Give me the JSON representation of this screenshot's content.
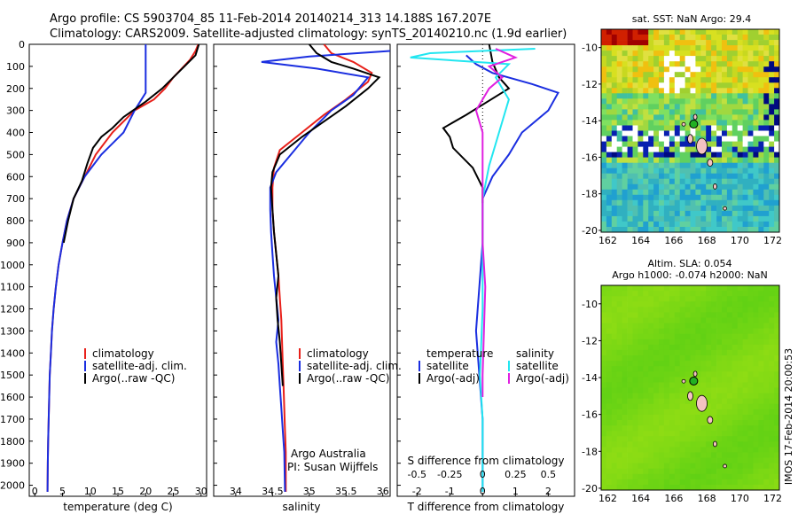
{
  "header": {
    "line1": "Argo profile: CS 5903704_85 11-Feb-2014 20140214_313 14.188S 167.207E",
    "line2": "Climatology: CARS2009. Satellite-adjusted climatology: synTS_20140210.nc (1.9d earlier)"
  },
  "credit": {
    "org": "Argo Australia",
    "pi": "PI: Susan Wijffels"
  },
  "side_stamp": "IMOS 17-Feb-2014 20:00:53",
  "colors": {
    "climatology": "#e8201a",
    "satellite": "#1a2ee0",
    "argo": "#000000",
    "cyan": "#22e6f0",
    "magenta": "#e020e0"
  },
  "chart_data": [
    {
      "type": "line",
      "name": "temperature-profile",
      "xlabel": "temperature (deg C)",
      "xlim": [
        -1,
        31
      ],
      "ylim": [
        0,
        2050
      ],
      "xticks": [
        0,
        5,
        10,
        15,
        20,
        25,
        30
      ],
      "yticks": [
        0,
        100,
        200,
        300,
        400,
        500,
        600,
        700,
        800,
        900,
        1000,
        1100,
        1200,
        1300,
        1400,
        1500,
        1600,
        1700,
        1800,
        1900,
        2000
      ],
      "legend": [
        "climatology",
        "satellite-adj. clim.",
        "Argo(..raw -QC)"
      ],
      "series": [
        {
          "name": "climatology",
          "color": "#e8201a",
          "points": [
            [
              29.5,
              0
            ],
            [
              29,
              30
            ],
            [
              28,
              70
            ],
            [
              26.5,
              110
            ],
            [
              25,
              150
            ],
            [
              23.5,
              200
            ],
            [
              21.5,
              250
            ],
            [
              18,
              300
            ],
            [
              14,
              400
            ],
            [
              11,
              500
            ],
            [
              9,
              600
            ],
            [
              7,
              700
            ],
            [
              5.8,
              800
            ],
            [
              5,
              900
            ],
            [
              4.3,
              1000
            ],
            [
              3.8,
              1100
            ],
            [
              3.4,
              1200
            ],
            [
              3.1,
              1300
            ],
            [
              2.9,
              1400
            ],
            [
              2.7,
              1500
            ],
            [
              2.6,
              1600
            ],
            [
              2.5,
              1700
            ],
            [
              2.4,
              1800
            ],
            [
              2.35,
              1900
            ],
            [
              2.3,
              2030
            ]
          ]
        },
        {
          "name": "satellite-adj. clim.",
          "color": "#1a2ee0",
          "points": [
            [
              20,
              0
            ],
            [
              20,
              100
            ],
            [
              20,
              220
            ],
            [
              18,
              300
            ],
            [
              16,
              400
            ],
            [
              12,
              500
            ],
            [
              9,
              600
            ],
            [
              7,
              700
            ],
            [
              5.8,
              800
            ],
            [
              5,
              900
            ],
            [
              4.3,
              1000
            ],
            [
              3.8,
              1100
            ],
            [
              3.4,
              1200
            ],
            [
              3.1,
              1300
            ],
            [
              2.9,
              1400
            ],
            [
              2.7,
              1500
            ],
            [
              2.6,
              1600
            ],
            [
              2.5,
              1700
            ],
            [
              2.4,
              1800
            ],
            [
              2.35,
              1900
            ],
            [
              2.3,
              2030
            ]
          ]
        },
        {
          "name": "Argo(..raw -QC)",
          "color": "#000000",
          "points": [
            [
              29.6,
              0
            ],
            [
              29,
              50
            ],
            [
              27,
              100
            ],
            [
              25,
              150
            ],
            [
              23,
              200
            ],
            [
              20,
              260
            ],
            [
              16,
              330
            ],
            [
              14,
              380
            ],
            [
              12,
              420
            ],
            [
              10.5,
              470
            ],
            [
              9.5,
              540
            ],
            [
              8.5,
              620
            ],
            [
              7,
              700
            ],
            [
              6,
              800
            ],
            [
              5.2,
              900
            ]
          ]
        }
      ]
    },
    {
      "type": "line",
      "name": "salinity-profile",
      "xlabel": "salinity",
      "xlim": [
        33.7,
        36.1
      ],
      "ylim": [
        0,
        2050
      ],
      "xticks": [
        34,
        34.5,
        35,
        35.5,
        36
      ],
      "legend": [
        "climatology",
        "satellite-adj. clim.",
        "Argo(..raw -QC)"
      ],
      "series": [
        {
          "name": "climatology",
          "color": "#e8201a",
          "points": [
            [
              35.2,
              0
            ],
            [
              35.3,
              40
            ],
            [
              35.6,
              80
            ],
            [
              35.85,
              130
            ],
            [
              35.8,
              170
            ],
            [
              35.5,
              250
            ],
            [
              35.2,
              320
            ],
            [
              34.9,
              400
            ],
            [
              34.6,
              480
            ],
            [
              34.52,
              560
            ],
            [
              34.5,
              650
            ],
            [
              34.5,
              750
            ],
            [
              34.52,
              850
            ],
            [
              34.55,
              950
            ],
            [
              34.58,
              1050
            ],
            [
              34.6,
              1150
            ],
            [
              34.62,
              1250
            ],
            [
              34.63,
              1350
            ],
            [
              34.64,
              1450
            ],
            [
              34.65,
              1550
            ],
            [
              34.66,
              1650
            ],
            [
              34.67,
              1750
            ],
            [
              34.68,
              1850
            ],
            [
              34.68,
              2030
            ]
          ]
        },
        {
          "name": "satellite-adj. clim.",
          "color": "#1a2ee0",
          "points": [
            [
              36.1,
              30
            ],
            [
              35,
              55
            ],
            [
              34.35,
              80
            ],
            [
              35.1,
              110
            ],
            [
              35.8,
              150
            ],
            [
              35.6,
              230
            ],
            [
              35.3,
              300
            ],
            [
              35.0,
              400
            ],
            [
              34.75,
              500
            ],
            [
              34.55,
              580
            ],
            [
              34.47,
              650
            ],
            [
              34.47,
              750
            ],
            [
              34.48,
              850
            ],
            [
              34.5,
              950
            ],
            [
              34.52,
              1050
            ],
            [
              34.55,
              1150
            ],
            [
              34.58,
              1250
            ],
            [
              34.55,
              1350
            ],
            [
              34.58,
              1450
            ],
            [
              34.6,
              1550
            ],
            [
              34.62,
              1650
            ],
            [
              34.64,
              1750
            ],
            [
              34.66,
              1850
            ],
            [
              34.67,
              2030
            ]
          ]
        },
        {
          "name": "Argo(..raw -QC)",
          "color": "#000000",
          "points": [
            [
              35.0,
              0
            ],
            [
              35.1,
              40
            ],
            [
              35.3,
              80
            ],
            [
              35.6,
              110
            ],
            [
              35.95,
              150
            ],
            [
              35.8,
              200
            ],
            [
              35.5,
              280
            ],
            [
              35.2,
              350
            ],
            [
              34.9,
              420
            ],
            [
              34.6,
              500
            ],
            [
              34.5,
              580
            ],
            [
              34.48,
              650
            ],
            [
              34.5,
              750
            ],
            [
              34.52,
              850
            ],
            [
              34.55,
              950
            ],
            [
              34.58,
              1050
            ],
            [
              34.55,
              1150
            ],
            [
              34.57,
              1250
            ],
            [
              34.6,
              1350
            ],
            [
              34.62,
              1450
            ],
            [
              34.64,
              1550
            ]
          ]
        }
      ]
    },
    {
      "type": "line",
      "name": "difference-profile",
      "xlabel_bottom": "T difference from climatology",
      "xlabel_top": "S difference from climatology",
      "xlim_T": [
        -2.6,
        2.8
      ],
      "xlim_S": [
        -0.65,
        0.7
      ],
      "xticks_T": [
        -2,
        -1,
        0,
        1,
        2
      ],
      "xticks_S": [
        -0.5,
        -0.25,
        0,
        0.25,
        0.5
      ],
      "legend_left_title": "temperature",
      "legend_right_title": "salinity",
      "legend_left": [
        "satellite",
        "Argo(-adj)"
      ],
      "legend_right": [
        "satellite",
        "Argo(-adj)"
      ],
      "series": [
        {
          "name": "T satellite",
          "color": "#1a2ee0",
          "points": [
            [
              -0.5,
              50
            ],
            [
              -0.2,
              90
            ],
            [
              0.3,
              130
            ],
            [
              1.5,
              180
            ],
            [
              2.3,
              220
            ],
            [
              2.0,
              300
            ],
            [
              1.2,
              400
            ],
            [
              0.8,
              500
            ],
            [
              0.3,
              600
            ],
            [
              0,
              700
            ],
            [
              0,
              900
            ],
            [
              -0.1,
              1100
            ],
            [
              -0.2,
              1300
            ],
            [
              -0.1,
              1500
            ],
            [
              0,
              1700
            ],
            [
              0,
              2030
            ]
          ]
        },
        {
          "name": "T Argo(-adj)",
          "color": "#000000",
          "points": [
            [
              0.2,
              0
            ],
            [
              0.3,
              80
            ],
            [
              0.5,
              150
            ],
            [
              0.8,
              200
            ],
            [
              -0.5,
              320
            ],
            [
              -1.2,
              380
            ],
            [
              -1.0,
              420
            ],
            [
              -0.9,
              470
            ],
            [
              -0.3,
              560
            ],
            [
              0,
              650
            ],
            [
              0,
              720
            ]
          ]
        },
        {
          "name": "S satellite",
          "color": "#22e6f0",
          "points": [
            [
              0.4,
              20
            ],
            [
              -0.4,
              40
            ],
            [
              -0.55,
              60
            ],
            [
              0.2,
              90
            ],
            [
              0.1,
              150
            ],
            [
              0.2,
              250
            ],
            [
              0.15,
              350
            ],
            [
              0.1,
              450
            ],
            [
              0.05,
              550
            ],
            [
              0,
              700
            ],
            [
              0,
              900
            ],
            [
              0,
              1200
            ],
            [
              -0.02,
              1500
            ],
            [
              0,
              1700
            ],
            [
              0,
              2030
            ]
          ]
        },
        {
          "name": "S Argo(-adj)",
          "color": "#e020e0",
          "points": [
            [
              0.1,
              20
            ],
            [
              0.25,
              60
            ],
            [
              0.05,
              100
            ],
            [
              0.15,
              150
            ],
            [
              0.05,
              200
            ],
            [
              -0.05,
              300
            ],
            [
              0,
              400
            ],
            [
              0,
              500
            ],
            [
              0,
              650
            ],
            [
              0,
              750
            ],
            [
              0,
              900
            ],
            [
              0.02,
              1100
            ],
            [
              0.01,
              1300
            ],
            [
              0,
              1500
            ],
            [
              0,
              1600
            ]
          ]
        }
      ]
    },
    {
      "type": "heatmap",
      "name": "sst-map",
      "title": "sat. SST: NaN Argo: 29.4",
      "xticks": [
        162,
        164,
        166,
        168,
        170,
        172
      ],
      "yticks": [
        -10,
        -12,
        -14,
        -16,
        -18,
        -20
      ],
      "argo_position": {
        "lon": 167.207,
        "lat": -14.188
      }
    },
    {
      "type": "heatmap",
      "name": "sla-map",
      "title_line1": "Altim. SLA: 0.054",
      "title_line2": "Argo h1000: -0.074 h2000: NaN",
      "xticks": [
        162,
        164,
        166,
        168,
        170,
        172
      ],
      "yticks": [
        -10,
        -12,
        -14,
        -16,
        -18,
        -20
      ],
      "argo_position": {
        "lon": 167.207,
        "lat": -14.188
      }
    }
  ]
}
